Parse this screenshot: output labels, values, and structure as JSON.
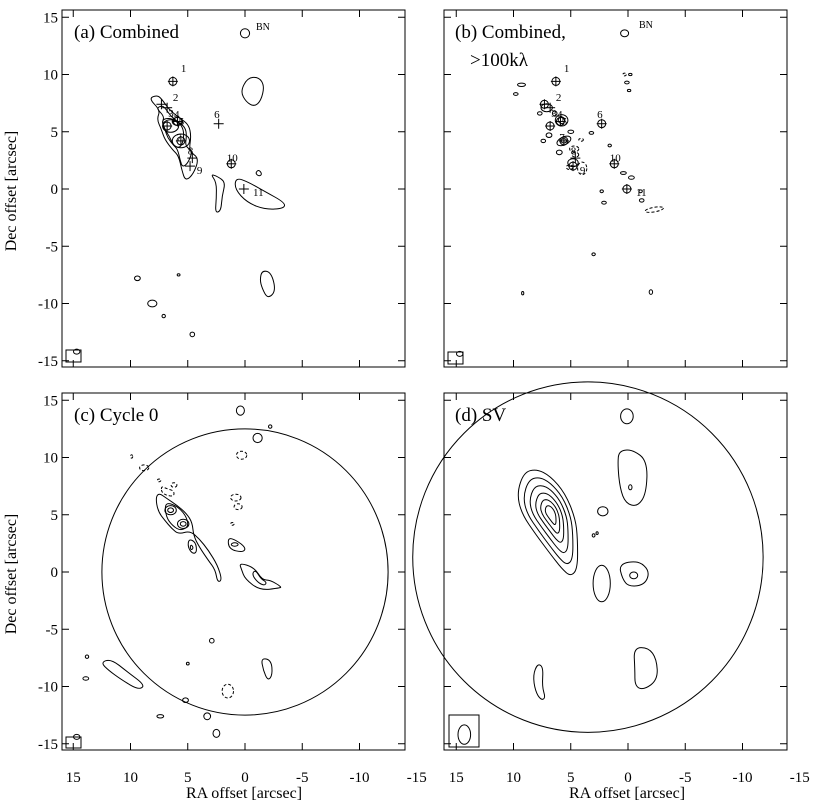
{
  "chart_data": {
    "type": "contour-map",
    "xlabel": "RA offset [arcsec]",
    "ylabel": "Dec offset [arcsec]",
    "xlim": [
      15,
      -15
    ],
    "ylim": [
      -15,
      15
    ],
    "xticks": [
      15,
      10,
      5,
      0,
      -5,
      -10,
      -15
    ],
    "yticks": [
      15,
      10,
      5,
      0,
      -5,
      -10,
      -15
    ],
    "panels": [
      {
        "id": "a",
        "title": "(a) Combined",
        "bn_label": "BN",
        "sources": [
          {
            "label": "1",
            "x": 6.3,
            "y": 9.4
          },
          {
            "label": "2",
            "x": 7.3,
            "y": 7.4
          },
          {
            "label": "3",
            "x": 6.8,
            "y": 7.1
          },
          {
            "label": "4",
            "x": 5.9,
            "y": 5.9
          },
          {
            "label": "5",
            "x": 6.8,
            "y": 5.5
          },
          {
            "label": "6",
            "x": 2.3,
            "y": 5.7
          },
          {
            "label": "7",
            "x": 5.6,
            "y": 4.2
          },
          {
            "label": "8",
            "x": 4.6,
            "y": 2.7
          },
          {
            "label": "9",
            "x": 4.8,
            "y": 2.0
          },
          {
            "label": "10",
            "x": 1.2,
            "y": 2.2
          },
          {
            "label": "11",
            "x": 0.1,
            "y": 0.0
          }
        ]
      },
      {
        "id": "b",
        "title_line1": "(b) Combined,",
        "title_line2": ">100kλ",
        "bn_label": "BN",
        "sources": [
          {
            "label": "1",
            "x": 6.3,
            "y": 9.4
          },
          {
            "label": "2",
            "x": 7.3,
            "y": 7.4
          },
          {
            "label": "3",
            "x": 6.8,
            "y": 7.1
          },
          {
            "label": "4",
            "x": 5.9,
            "y": 5.9
          },
          {
            "label": "5",
            "x": 6.8,
            "y": 5.5
          },
          {
            "label": "6",
            "x": 2.3,
            "y": 5.7
          },
          {
            "label": "7",
            "x": 5.6,
            "y": 4.2
          },
          {
            "label": "8",
            "x": 4.6,
            "y": 2.7
          },
          {
            "label": "9",
            "x": 4.8,
            "y": 2.0
          },
          {
            "label": "10",
            "x": 1.2,
            "y": 2.2
          },
          {
            "label": "11",
            "x": 0.1,
            "y": 0.0
          }
        ]
      },
      {
        "id": "c",
        "title": "(c) Cycle 0",
        "primary_beam": {
          "x0": 0,
          "y0": 0,
          "r": 12.5
        }
      },
      {
        "id": "d",
        "title": "(d) SV",
        "primary_beam": {
          "x0": 3.5,
          "y0": 1.3,
          "r": 15.3
        }
      }
    ]
  }
}
